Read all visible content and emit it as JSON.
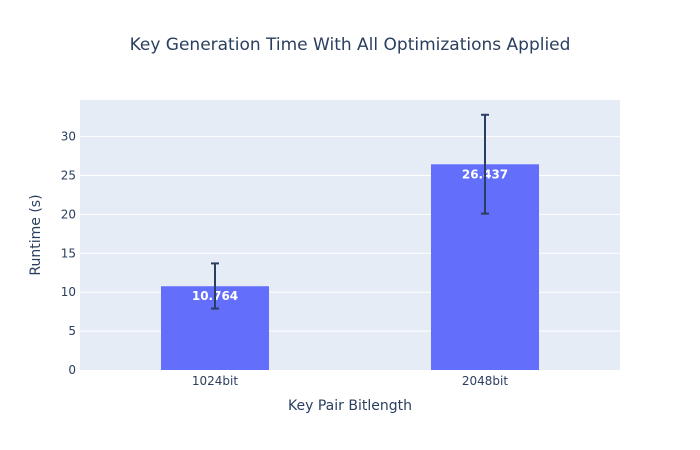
{
  "chart_data": {
    "type": "bar",
    "title": "Key Generation Time With All Optimizations Applied",
    "xlabel": "Key Pair Bitlength",
    "ylabel": "Runtime (s)",
    "categories": [
      "1024bit",
      "2048bit"
    ],
    "values": [
      10.764,
      26.437
    ],
    "value_labels": [
      "10.764",
      "26.437"
    ],
    "error_bars": [
      {
        "low": 7.9,
        "high": 13.7
      },
      {
        "low": 20.1,
        "high": 32.8
      }
    ],
    "ylim": [
      0,
      34.7
    ],
    "yticks": [
      0,
      5,
      10,
      15,
      20,
      25,
      30
    ],
    "ytick_labels": [
      "0",
      "5",
      "10",
      "15",
      "20",
      "25",
      "30"
    ],
    "grid": true,
    "colors": {
      "bar": "#636efa",
      "plot_bg": "#e5ecf6",
      "grid": "#ffffff",
      "error_bar": "#2a3f5f",
      "text": "#2a3f5f"
    }
  }
}
